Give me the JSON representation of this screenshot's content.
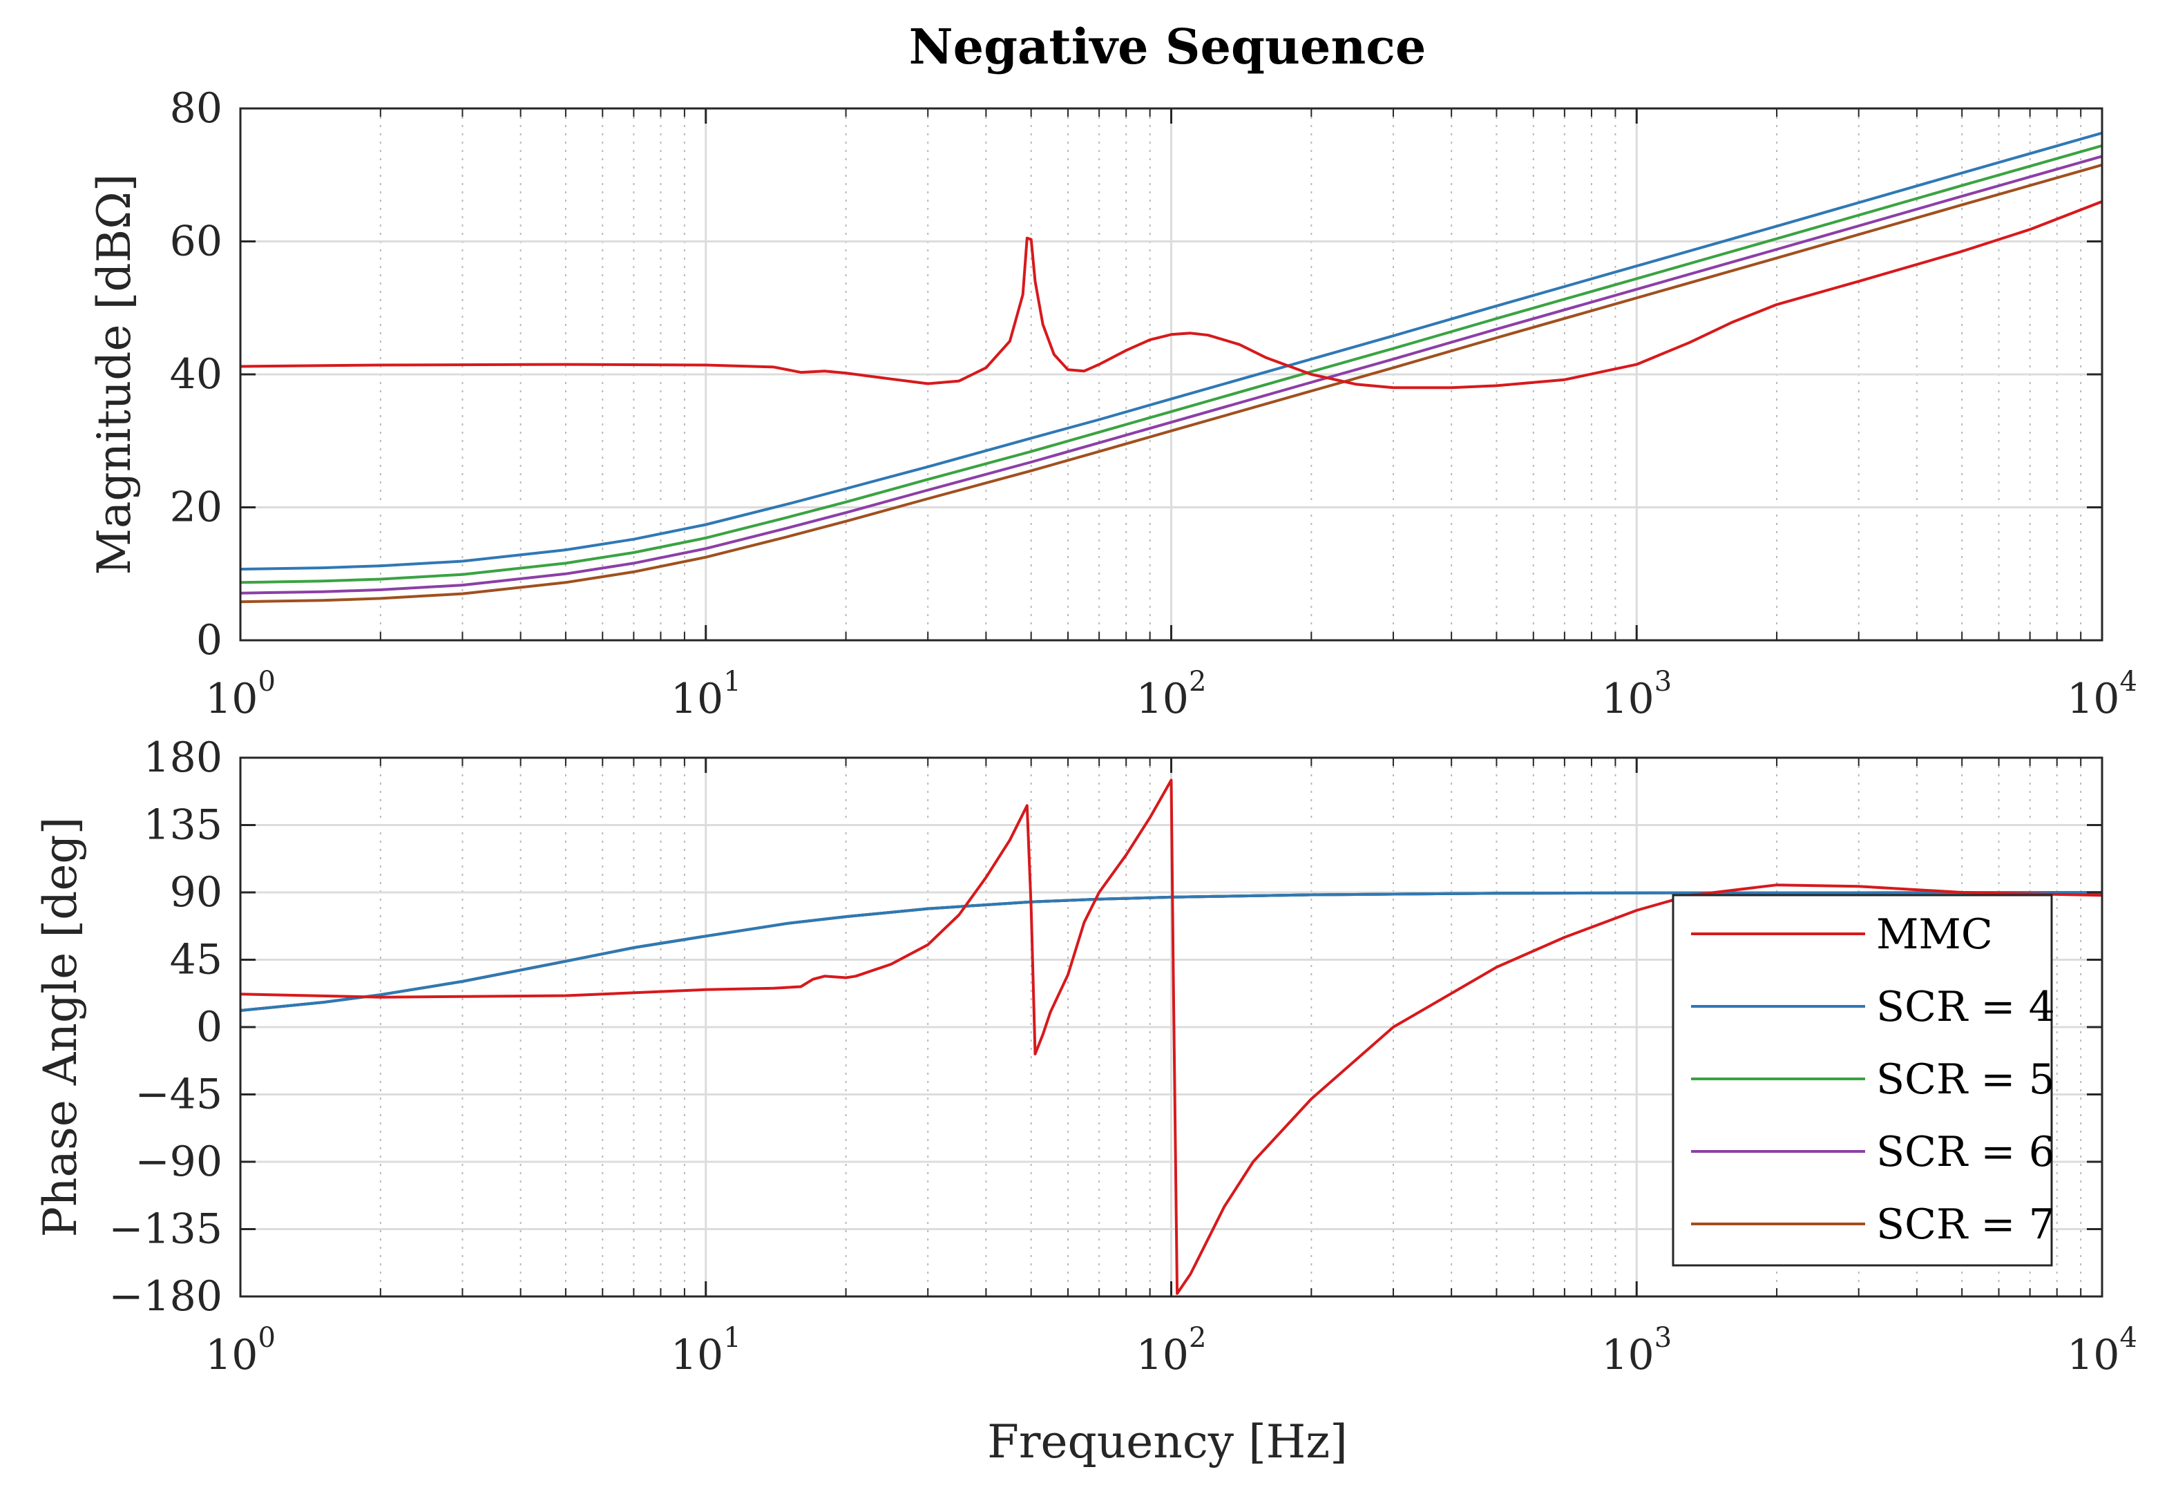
{
  "chart_data": [
    {
      "type": "line",
      "title": "Negative Sequence",
      "xlabel": "",
      "ylabel": "Magnitude [dBΩ]",
      "xscale": "log",
      "xlim": [
        1,
        10000
      ],
      "ylim": [
        0,
        80
      ],
      "grid": true,
      "xticks": [
        {
          "base": "10",
          "exp": "0",
          "value": 1
        },
        {
          "base": "10",
          "exp": "1",
          "value": 10
        },
        {
          "base": "10",
          "exp": "2",
          "value": 100
        },
        {
          "base": "10",
          "exp": "3",
          "value": 1000
        },
        {
          "base": "10",
          "exp": "4",
          "value": 10000
        }
      ],
      "yticks": [
        {
          "label": "0",
          "value": 0
        },
        {
          "label": "20",
          "value": 20
        },
        {
          "label": "40",
          "value": 40
        },
        {
          "label": "60",
          "value": 60
        },
        {
          "label": "80",
          "value": 80
        }
      ],
      "series": [
        {
          "name": "MMC",
          "color": "#d7191c",
          "x": [
            1,
            2,
            5,
            10,
            14,
            16,
            18,
            20,
            25,
            30,
            35,
            40,
            45,
            48,
            49,
            50,
            51,
            53,
            56,
            60,
            65,
            70,
            80,
            90,
            100,
            110,
            120,
            140,
            160,
            200,
            250,
            300,
            400,
            500,
            700,
            1000,
            1300,
            1600,
            2000,
            3000,
            5000,
            7000,
            10000
          ],
          "y": [
            41.2,
            41.4,
            41.5,
            41.4,
            41.1,
            40.3,
            40.5,
            40.2,
            39.3,
            38.6,
            39.0,
            41.0,
            45.0,
            52.0,
            60.5,
            60.3,
            54.0,
            47.5,
            43.0,
            40.7,
            40.5,
            41.5,
            43.6,
            45.2,
            46.0,
            46.2,
            45.9,
            44.5,
            42.5,
            40.0,
            38.5,
            38.0,
            38.0,
            38.3,
            39.2,
            41.5,
            44.8,
            47.8,
            50.5,
            54.0,
            58.5,
            61.8,
            66.0
          ]
        },
        {
          "name": "SCR = 4",
          "color": "#2f78b5",
          "x": [
            1,
            1.5,
            2,
            3,
            5,
            7,
            10,
            15,
            20,
            30,
            50,
            70,
            100,
            200,
            300,
            500,
            1000,
            2000,
            5000,
            10000
          ],
          "y": [
            10.7,
            10.9,
            11.2,
            11.9,
            13.6,
            15.2,
            17.4,
            20.5,
            22.8,
            26.1,
            30.4,
            33.2,
            36.3,
            42.3,
            45.8,
            50.3,
            56.3,
            62.3,
            70.3,
            76.3
          ]
        },
        {
          "name": "SCR = 5",
          "color": "#3aa342",
          "x": [
            1,
            1.5,
            2,
            3,
            5,
            7,
            10,
            15,
            20,
            30,
            50,
            70,
            100,
            200,
            300,
            500,
            1000,
            2000,
            5000,
            10000
          ],
          "y": [
            8.7,
            8.9,
            9.2,
            9.9,
            11.6,
            13.2,
            15.4,
            18.5,
            20.8,
            24.2,
            28.4,
            31.3,
            34.4,
            40.4,
            43.9,
            48.4,
            54.4,
            60.4,
            68.4,
            74.4
          ]
        },
        {
          "name": "SCR = 6",
          "color": "#8c3fa6",
          "x": [
            1,
            1.5,
            2,
            3,
            5,
            7,
            10,
            15,
            20,
            30,
            50,
            70,
            100,
            200,
            300,
            500,
            1000,
            2000,
            5000,
            10000
          ],
          "y": [
            7.1,
            7.3,
            7.6,
            8.3,
            10.0,
            11.6,
            13.8,
            16.9,
            19.2,
            22.6,
            26.8,
            29.7,
            32.8,
            38.8,
            42.3,
            46.8,
            52.8,
            58.8,
            66.8,
            72.8
          ]
        },
        {
          "name": "SCR = 7",
          "color": "#a0501e",
          "x": [
            1,
            1.5,
            2,
            3,
            5,
            7,
            10,
            15,
            20,
            30,
            50,
            70,
            100,
            200,
            300,
            500,
            1000,
            2000,
            5000,
            10000
          ],
          "y": [
            5.8,
            6.0,
            6.3,
            7.0,
            8.7,
            10.3,
            12.5,
            15.6,
            17.9,
            21.3,
            25.5,
            28.4,
            31.5,
            37.5,
            41.0,
            45.5,
            51.5,
            57.5,
            65.5,
            71.5
          ]
        }
      ]
    },
    {
      "type": "line",
      "title": "",
      "xlabel": "Frequency [Hz]",
      "ylabel": "Phase Angle [deg]",
      "xscale": "log",
      "xlim": [
        1,
        10000
      ],
      "ylim": [
        -180,
        180
      ],
      "grid": true,
      "legend_position": "bottom-right",
      "xticks": [
        {
          "base": "10",
          "exp": "0",
          "value": 1
        },
        {
          "base": "10",
          "exp": "1",
          "value": 10
        },
        {
          "base": "10",
          "exp": "2",
          "value": 100
        },
        {
          "base": "10",
          "exp": "3",
          "value": 1000
        },
        {
          "base": "10",
          "exp": "4",
          "value": 10000
        }
      ],
      "yticks": [
        {
          "label": "−180",
          "value": -180
        },
        {
          "label": "−135",
          "value": -135
        },
        {
          "label": "−90",
          "value": -90
        },
        {
          "label": "−45",
          "value": -45
        },
        {
          "label": "0",
          "value": 0
        },
        {
          "label": "45",
          "value": 45
        },
        {
          "label": "90",
          "value": 90
        },
        {
          "label": "135",
          "value": 135
        },
        {
          "label": "180",
          "value": 180
        }
      ],
      "series": [
        {
          "name": "MMC",
          "color": "#d7191c",
          "x": [
            1,
            2,
            5,
            10,
            14,
            16,
            17,
            18,
            20,
            21,
            25,
            30,
            35,
            40,
            45,
            49,
            50,
            51,
            53,
            55,
            60,
            65,
            70,
            80,
            90,
            100,
            101,
            103,
            110,
            130,
            150,
            200,
            300,
            500,
            700,
            1000,
            1300,
            2000,
            3000,
            5000,
            10000
          ],
          "y": [
            22,
            20,
            21,
            25,
            26,
            27,
            32,
            34,
            33,
            34,
            42,
            55,
            75,
            100,
            125,
            148,
            80,
            -18,
            -5,
            10,
            35,
            70,
            90,
            115,
            140,
            165,
            40,
            -178,
            -165,
            -120,
            -90,
            -48,
            0,
            40,
            60,
            78,
            88,
            95,
            94,
            90,
            88
          ]
        },
        {
          "name": "SCR = 4",
          "color": "#2f78b5",
          "x": [
            1,
            1.5,
            2,
            3,
            5,
            7,
            10,
            15,
            20,
            30,
            50,
            70,
            100,
            200,
            500,
            1000,
            10000
          ],
          "y": [
            11.1,
            16.5,
            21.6,
            30.5,
            44.0,
            53.1,
            60.8,
            69.3,
            73.8,
            79.1,
            83.7,
            85.5,
            86.8,
            88.4,
            89.4,
            89.7,
            89.9
          ]
        },
        {
          "name": "SCR = 5",
          "color": "#3aa342",
          "x": [
            1,
            1.5,
            2,
            3,
            5,
            7,
            10,
            15,
            20,
            30,
            50,
            70,
            100,
            200,
            500,
            1000,
            10000
          ],
          "y": [
            11.1,
            16.5,
            21.6,
            30.5,
            44.0,
            53.1,
            60.8,
            69.3,
            73.8,
            79.1,
            83.7,
            85.5,
            86.8,
            88.4,
            89.4,
            89.7,
            89.9
          ]
        },
        {
          "name": "SCR = 6",
          "color": "#8c3fa6",
          "x": [
            1,
            1.5,
            2,
            3,
            5,
            7,
            10,
            15,
            20,
            30,
            50,
            70,
            100,
            200,
            500,
            1000,
            10000
          ],
          "y": [
            11.1,
            16.5,
            21.6,
            30.5,
            44.0,
            53.1,
            60.8,
            69.3,
            73.8,
            79.1,
            83.7,
            85.5,
            86.8,
            88.4,
            89.4,
            89.7,
            89.9
          ]
        },
        {
          "name": "SCR = 7",
          "color": "#a0501e",
          "x": [
            1,
            1.5,
            2,
            3,
            5,
            7,
            10,
            15,
            20,
            30,
            50,
            70,
            100,
            200,
            500,
            1000,
            10000
          ],
          "y": [
            11.1,
            16.5,
            21.6,
            30.5,
            44.0,
            53.1,
            60.8,
            69.3,
            73.8,
            79.1,
            83.7,
            85.5,
            86.8,
            88.4,
            89.4,
            89.7,
            89.9
          ]
        }
      ]
    }
  ],
  "legend": [
    {
      "name": "MMC",
      "color": "#d7191c"
    },
    {
      "name": "SCR = 4",
      "color": "#2f78b5"
    },
    {
      "name": "SCR = 5",
      "color": "#3aa342"
    },
    {
      "name": "SCR = 6",
      "color": "#8c3fa6"
    },
    {
      "name": "SCR = 7",
      "color": "#a0501e"
    }
  ]
}
